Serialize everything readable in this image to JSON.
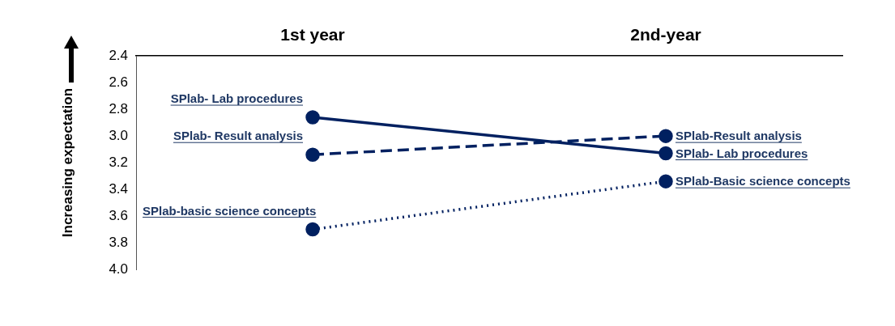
{
  "chart_data": {
    "type": "line",
    "categories": [
      "1st year",
      "2nd-year"
    ],
    "ylabel": "Increasing expectation",
    "ylim": [
      4.0,
      2.4
    ],
    "yticks": [
      2.4,
      2.6,
      2.8,
      {
        "value": 3,
        "label": "3.0"
      },
      3.2,
      3.4,
      3.6,
      3.8,
      {
        "value": 4,
        "label": "4.0"
      }
    ],
    "series": [
      {
        "color": "#002060",
        "values": [
          2.86,
          3.13
        ],
        "line_style": "solid"
      },
      {
        "color": "#002060",
        "values": [
          3.14,
          3.0
        ],
        "line_style": "dashed"
      },
      {
        "color": "#002060",
        "values": [
          3.7,
          3.34
        ],
        "line_style": "dotted"
      }
    ],
    "annotations": [
      {
        "text": "SPlab- Lab procedures",
        "x": "1st year",
        "y": 2.86
      },
      {
        "text": "SPlab- Result analysis",
        "x": "1st year",
        "y": 3.14
      },
      {
        "text": "SPlab-basic science concepts",
        "x": "1st year",
        "y": 3.7
      },
      {
        "text": "SPlab-Result analysis",
        "x": "2nd-year",
        "y": 3.0
      },
      {
        "text": "SPlab- Lab procedures",
        "x": "2nd-year",
        "y": 3.13
      },
      {
        "text": "SPlab-Basic science concepts",
        "x": "2nd-year",
        "y": 3.34
      }
    ],
    "marker": "circle",
    "grid": false,
    "legend": false
  }
}
